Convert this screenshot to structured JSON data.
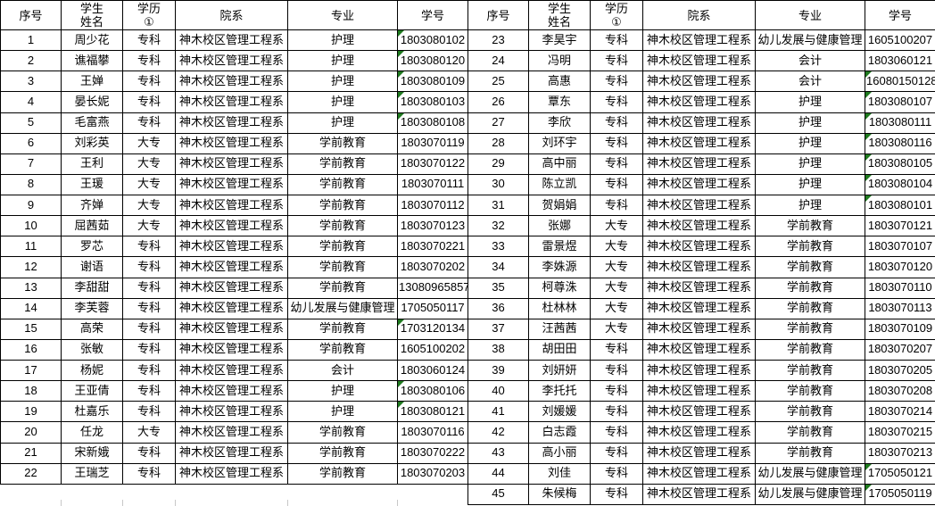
{
  "icons": {
    "error_flag_icon": "excel-green-corner-triangle"
  },
  "colors": {
    "border": "#000000",
    "flag_green": "#1f7a1f",
    "grid_light": "#c8c8c8",
    "background": "#ffffff"
  },
  "table": {
    "header": {
      "no": "序号",
      "name": "学生\n姓名",
      "degree": "学历\n①",
      "dept": "院系",
      "major": "专业",
      "id": "学号"
    },
    "left_rows": [
      {
        "no": "1",
        "name": "周少花",
        "degree": "专科",
        "dept": "神木校区管理工程系",
        "major": "护理",
        "id": "1803080102",
        "flag": true
      },
      {
        "no": "2",
        "name": "谯福攀",
        "degree": "专科",
        "dept": "神木校区管理工程系",
        "major": "护理",
        "id": "1803080120",
        "flag": true
      },
      {
        "no": "3",
        "name": "王婵",
        "degree": "专科",
        "dept": "神木校区管理工程系",
        "major": "护理",
        "id": "1803080109",
        "flag": true
      },
      {
        "no": "4",
        "name": "晏长妮",
        "degree": "专科",
        "dept": "神木校区管理工程系",
        "major": "护理",
        "id": "1803080103",
        "flag": true
      },
      {
        "no": "5",
        "name": "毛富燕",
        "degree": "专科",
        "dept": "神木校区管理工程系",
        "major": "护理",
        "id": "1803080108",
        "flag": true
      },
      {
        "no": "6",
        "name": "刘彩英",
        "degree": "大专",
        "dept": "神木校区管理工程系",
        "major": "学前教育",
        "id": "1803070119",
        "flag": false
      },
      {
        "no": "7",
        "name": "王利",
        "degree": "大专",
        "dept": "神木校区管理工程系",
        "major": "学前教育",
        "id": "1803070122",
        "flag": false
      },
      {
        "no": "8",
        "name": "王瑗",
        "degree": "大专",
        "dept": "神木校区管理工程系",
        "major": "学前教育",
        "id": "1803070111",
        "flag": false
      },
      {
        "no": "9",
        "name": "齐婵",
        "degree": "大专",
        "dept": "神木校区管理工程系",
        "major": "学前教育",
        "id": "1803070112",
        "flag": false
      },
      {
        "no": "10",
        "name": "屈茜茹",
        "degree": "大专",
        "dept": "神木校区管理工程系",
        "major": "学前教育",
        "id": "1803070123",
        "flag": false
      },
      {
        "no": "11",
        "name": "罗芯",
        "degree": "专科",
        "dept": "神木校区管理工程系",
        "major": "学前教育",
        "id": "1803070221",
        "flag": false
      },
      {
        "no": "12",
        "name": "谢语",
        "degree": "专科",
        "dept": "神木校区管理工程系",
        "major": "学前教育",
        "id": "1803070202",
        "flag": false
      },
      {
        "no": "13",
        "name": "李甜甜",
        "degree": "专科",
        "dept": "神木校区管理工程系",
        "major": "学前教育",
        "id": "13080965857",
        "flag": false
      },
      {
        "no": "14",
        "name": "李芙蓉",
        "degree": "专科",
        "dept": "神木校区管理工程系",
        "major": "幼儿发展与健康管理",
        "id": "1705050117",
        "flag": false
      },
      {
        "no": "15",
        "name": "高荣",
        "degree": "专科",
        "dept": "神木校区管理工程系",
        "major": "学前教育",
        "id": "1703120134",
        "flag": true
      },
      {
        "no": "16",
        "name": "张敏",
        "degree": "专科",
        "dept": "神木校区管理工程系",
        "major": "学前教育",
        "id": "1605100202",
        "flag": false
      },
      {
        "no": "17",
        "name": "杨妮",
        "degree": "专科",
        "dept": "神木校区管理工程系",
        "major": "会计",
        "id": "1803060124",
        "flag": false
      },
      {
        "no": "18",
        "name": "王亚倩",
        "degree": "专科",
        "dept": "神木校区管理工程系",
        "major": "护理",
        "id": "1803080106",
        "flag": true
      },
      {
        "no": "19",
        "name": "杜嘉乐",
        "degree": "专科",
        "dept": "神木校区管理工程系",
        "major": "护理",
        "id": "1803080121",
        "flag": true
      },
      {
        "no": "20",
        "name": "任龙",
        "degree": "大专",
        "dept": "神木校区管理工程系",
        "major": "学前教育",
        "id": "1803070116",
        "flag": false
      },
      {
        "no": "21",
        "name": "宋新娥",
        "degree": "专科",
        "dept": "神木校区管理工程系",
        "major": "学前教育",
        "id": "1803070222",
        "flag": false
      },
      {
        "no": "22",
        "name": "王瑞芝",
        "degree": "专科",
        "dept": "神木校区管理工程系",
        "major": "学前教育",
        "id": "1803070203",
        "flag": false
      }
    ],
    "right_rows": [
      {
        "no": "23",
        "name": "李昊宇",
        "degree": "专科",
        "dept": "神木校区管理工程系",
        "major": "幼儿发展与健康管理",
        "id": "1605100207",
        "flag": false
      },
      {
        "no": "24",
        "name": "冯明",
        "degree": "专科",
        "dept": "神木校区管理工程系",
        "major": "会计",
        "id": "1803060121",
        "flag": false
      },
      {
        "no": "25",
        "name": "高惠",
        "degree": "专科",
        "dept": "神木校区管理工程系",
        "major": "会计",
        "id": "16080150128",
        "flag": true
      },
      {
        "no": "26",
        "name": "覃东",
        "degree": "专科",
        "dept": "神木校区管理工程系",
        "major": "护理",
        "id": "1803080107",
        "flag": true
      },
      {
        "no": "27",
        "name": "李欣",
        "degree": "专科",
        "dept": "神木校区管理工程系",
        "major": "护理",
        "id": "1803080111",
        "flag": true
      },
      {
        "no": "28",
        "name": "刘环宇",
        "degree": "专科",
        "dept": "神木校区管理工程系",
        "major": "护理",
        "id": "1803080116",
        "flag": true
      },
      {
        "no": "29",
        "name": "高中丽",
        "degree": "专科",
        "dept": "神木校区管理工程系",
        "major": "护理",
        "id": "1803080105",
        "flag": true
      },
      {
        "no": "30",
        "name": "陈立凯",
        "degree": "专科",
        "dept": "神木校区管理工程系",
        "major": "护理",
        "id": "1803080104",
        "flag": true
      },
      {
        "no": "31",
        "name": "贺娟娟",
        "degree": "专科",
        "dept": "神木校区管理工程系",
        "major": "护理",
        "id": "1803080101",
        "flag": true
      },
      {
        "no": "32",
        "name": "张娜",
        "degree": "大专",
        "dept": "神木校区管理工程系",
        "major": "学前教育",
        "id": "1803070121",
        "flag": false
      },
      {
        "no": "33",
        "name": "雷景煜",
        "degree": "大专",
        "dept": "神木校区管理工程系",
        "major": "学前教育",
        "id": "1803070107",
        "flag": false
      },
      {
        "no": "34",
        "name": "李姝源",
        "degree": "大专",
        "dept": "神木校区管理工程系",
        "major": "学前教育",
        "id": "1803070120",
        "flag": false
      },
      {
        "no": "35",
        "name": "柯尊洙",
        "degree": "大专",
        "dept": "神木校区管理工程系",
        "major": "学前教育",
        "id": "1803070110",
        "flag": false
      },
      {
        "no": "36",
        "name": "杜林林",
        "degree": "大专",
        "dept": "神木校区管理工程系",
        "major": "学前教育",
        "id": "1803070113",
        "flag": false
      },
      {
        "no": "37",
        "name": "汪茜茜",
        "degree": "大专",
        "dept": "神木校区管理工程系",
        "major": "学前教育",
        "id": "1803070109",
        "flag": false
      },
      {
        "no": "38",
        "name": "胡田田",
        "degree": "专科",
        "dept": "神木校区管理工程系",
        "major": "学前教育",
        "id": "1803070207",
        "flag": false
      },
      {
        "no": "39",
        "name": "刘妍妍",
        "degree": "专科",
        "dept": "神木校区管理工程系",
        "major": "学前教育",
        "id": "1803070205",
        "flag": false
      },
      {
        "no": "40",
        "name": "李托托",
        "degree": "专科",
        "dept": "神木校区管理工程系",
        "major": "学前教育",
        "id": "1803070208",
        "flag": false
      },
      {
        "no": "41",
        "name": "刘媛媛",
        "degree": "专科",
        "dept": "神木校区管理工程系",
        "major": "学前教育",
        "id": "1803070214",
        "flag": false
      },
      {
        "no": "42",
        "name": "白志霞",
        "degree": "专科",
        "dept": "神木校区管理工程系",
        "major": "学前教育",
        "id": "1803070215",
        "flag": false
      },
      {
        "no": "43",
        "name": "高小丽",
        "degree": "专科",
        "dept": "神木校区管理工程系",
        "major": "学前教育",
        "id": "1803070213",
        "flag": false
      },
      {
        "no": "44",
        "name": "刘佳",
        "degree": "专科",
        "dept": "神木校区管理工程系",
        "major": "幼儿发展与健康管理",
        "id": "1705050121",
        "flag": true
      },
      {
        "no": "45",
        "name": "朱候梅",
        "degree": "专科",
        "dept": "神木校区管理工程系",
        "major": "幼儿发展与健康管理",
        "id": "1705050119",
        "flag": true
      }
    ]
  }
}
